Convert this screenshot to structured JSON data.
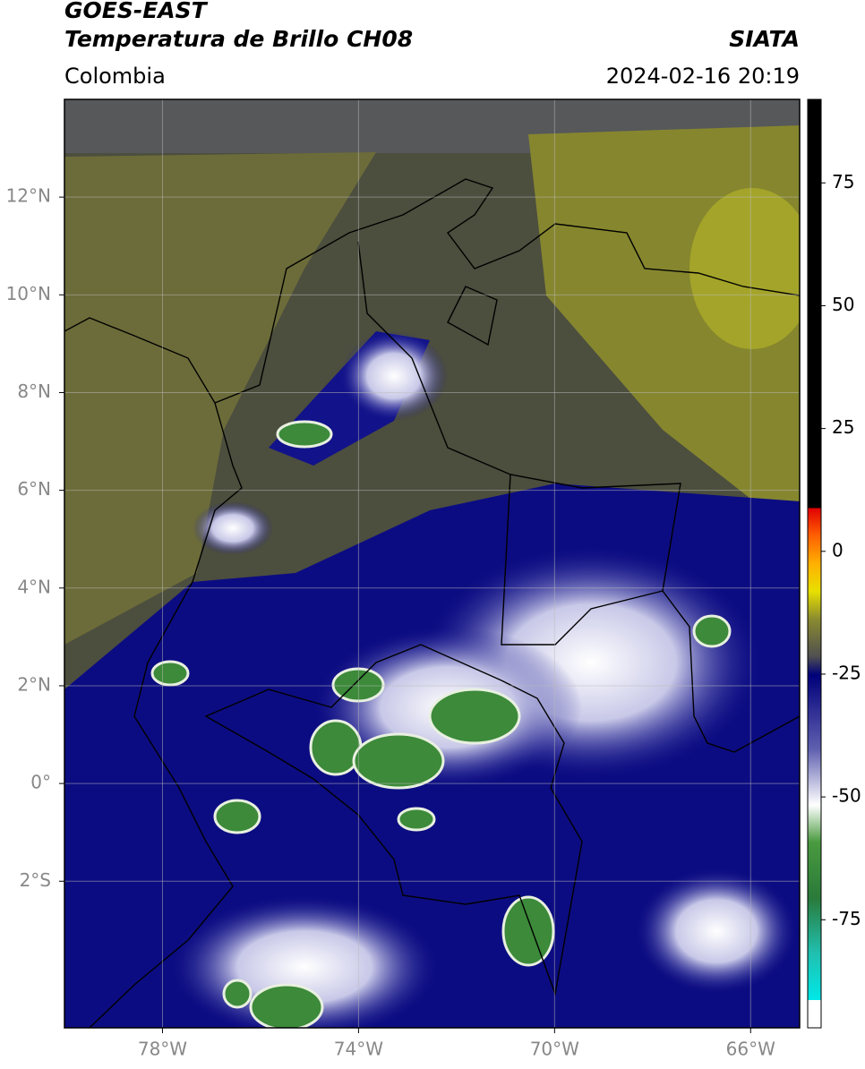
{
  "header": {
    "satellite": "GOES-EAST",
    "product": "Temperatura de Brillo CH08",
    "region": "Colombia",
    "source": "SIATA",
    "datetime": "2024-02-16 20:19"
  },
  "map": {
    "lon_range": [
      -80,
      -65
    ],
    "lat_range": [
      -5,
      14
    ],
    "grid": true,
    "lon_ticks": [
      {
        "value": -78,
        "label": "78°W"
      },
      {
        "value": -74,
        "label": "74°W"
      },
      {
        "value": -70,
        "label": "70°W"
      },
      {
        "value": -66,
        "label": "66°W"
      }
    ],
    "lat_ticks": [
      {
        "value": 12,
        "label": "12°N"
      },
      {
        "value": 10,
        "label": "10°N"
      },
      {
        "value": 8,
        "label": "8°N"
      },
      {
        "value": 6,
        "label": "6°N"
      },
      {
        "value": 4,
        "label": "4°N"
      },
      {
        "value": 2,
        "label": "2°N"
      },
      {
        "value": 0,
        "label": "0°"
      },
      {
        "value": -2,
        "label": "2°S"
      }
    ]
  },
  "colorbar": {
    "range": [
      -97,
      92
    ],
    "ticks": [
      75,
      50,
      25,
      0,
      -25,
      -50,
      -75
    ]
  }
}
